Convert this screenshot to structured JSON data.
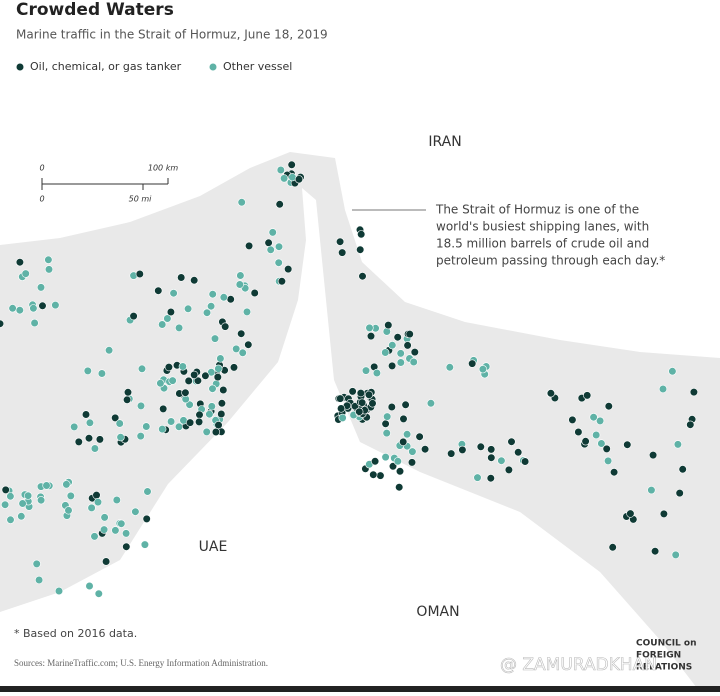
{
  "header": {
    "title": "Crowded Waters",
    "subtitle": "Marine traffic in the Strait of Hormuz, June 18, 2019"
  },
  "legend": {
    "items": [
      {
        "label": "Oil, chemical, or gas tanker",
        "color": "#0f3a35"
      },
      {
        "label": "Other vessel",
        "color": "#5fb2a6"
      }
    ]
  },
  "map": {
    "labels": [
      "IRAN",
      "UAE",
      "OMAN"
    ],
    "scale": {
      "km_start": "0",
      "km_end": "100 km",
      "mi_start": "0",
      "mi_end": "50 mi"
    },
    "annotation": [
      "The Strait of Hormuz is one of the",
      "world's busiest shipping lanes, with",
      "18.5 million barrels of crude oil and",
      "petroleum passing through each day.*"
    ]
  },
  "footnote": "* Based on 2016 data.",
  "sources": "Sources: MarineTraffic.com; U.S. Energy Information Administration.",
  "logo": [
    "COUNCIL on",
    "FOREIGN",
    "RELATIONS"
  ],
  "watermark": "@ ZAMURADKHAN"
}
